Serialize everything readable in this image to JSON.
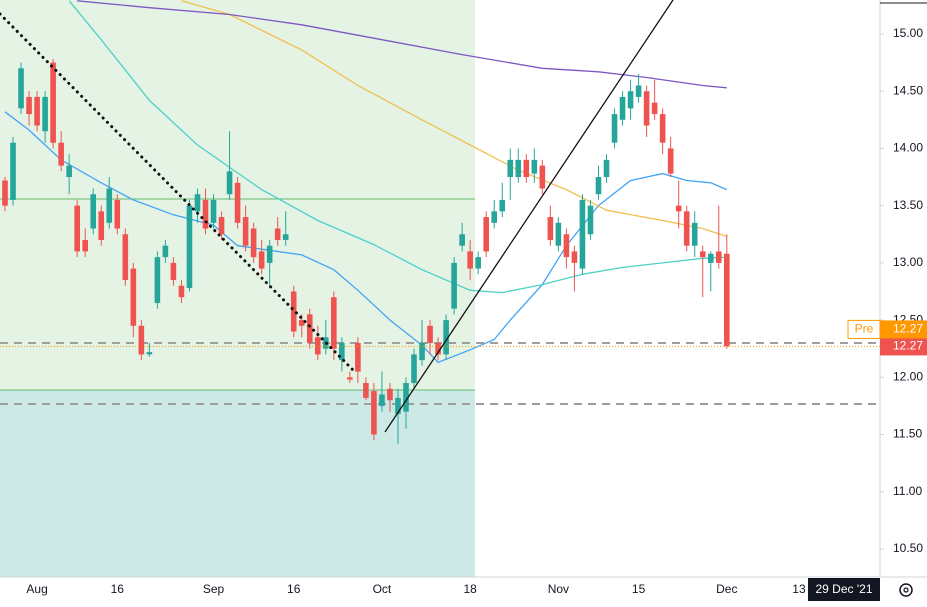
{
  "chart_data": {
    "type": "candlestick",
    "categories": [
      null,
      null,
      null,
      null,
      "Aug",
      null,
      null,
      null,
      null,
      null,
      null,
      null,
      null,
      null,
      "16",
      null,
      null,
      null,
      null,
      null,
      null,
      null,
      null,
      null,
      null,
      null,
      "Sep",
      null,
      null,
      null,
      null,
      null,
      null,
      null,
      null,
      null,
      "16",
      null,
      null,
      null,
      null,
      null,
      null,
      null,
      null,
      null,
      null,
      "Oct",
      null,
      null,
      null,
      null,
      null,
      null,
      null,
      null,
      null,
      null,
      "18",
      null,
      null,
      null,
      null,
      null,
      null,
      null,
      null,
      null,
      null,
      "Nov",
      null,
      null,
      null,
      null,
      null,
      null,
      null,
      null,
      null,
      "15",
      null,
      null,
      null,
      null,
      null,
      null,
      null,
      null,
      null,
      null,
      "Dec",
      null,
      null,
      null,
      null,
      null,
      null,
      null,
      null,
      "13"
    ],
    "open": [
      13.72,
      13.55,
      14.35,
      14.45,
      14.45,
      14.15,
      14.75,
      14.05,
      13.75,
      13.5,
      13.2,
      13.3,
      13.45,
      13.35,
      13.55,
      13.25,
      12.95,
      12.45,
      12.2,
      12.65,
      13.05,
      13.0,
      12.8,
      12.78,
      13.45,
      13.55,
      13.35,
      13.4,
      13.6,
      13.7,
      13.4,
      13.3,
      13.1,
      13.0,
      13.3,
      13.2,
      12.75,
      12.5,
      12.55,
      12.35,
      12.25,
      12.7,
      12.15,
      12.0,
      12.3,
      11.95,
      11.88,
      11.75,
      11.9,
      11.68,
      11.7,
      11.95,
      12.15,
      12.45,
      12.3,
      12.2,
      12.6,
      13.15,
      13.1,
      12.95,
      13.4,
      13.35,
      13.45,
      13.75,
      13.75,
      13.9,
      13.78,
      13.85,
      13.4,
      13.15,
      13.25,
      13.1,
      12.95,
      13.25,
      13.6,
      13.75,
      14.05,
      14.25,
      14.35,
      14.45,
      14.5,
      14.4,
      14.3,
      14.0,
      13.5,
      13.45,
      13.15,
      13.1,
      13.0,
      13.1,
      13.08,
      null,
      null,
      null,
      null,
      null,
      null,
      null,
      null,
      null
    ],
    "high": [
      13.75,
      14.1,
      14.75,
      14.5,
      14.5,
      14.5,
      14.78,
      14.15,
      13.95,
      13.55,
      13.3,
      13.65,
      13.5,
      13.75,
      13.6,
      13.3,
      13.0,
      12.5,
      12.3,
      13.1,
      13.2,
      13.05,
      12.85,
      13.55,
      13.65,
      13.65,
      13.6,
      13.45,
      14.15,
      13.75,
      13.5,
      13.35,
      13.2,
      13.2,
      13.4,
      13.45,
      12.8,
      12.55,
      12.6,
      12.45,
      12.5,
      12.75,
      12.35,
      12.05,
      12.35,
      12.0,
      11.95,
      12.05,
      11.95,
      11.9,
      12.0,
      12.25,
      12.5,
      12.5,
      12.35,
      12.55,
      13.05,
      13.35,
      13.2,
      13.1,
      13.45,
      13.55,
      13.7,
      14.0,
      14.0,
      13.95,
      14.0,
      13.9,
      13.5,
      13.4,
      13.3,
      13.15,
      13.6,
      13.55,
      13.85,
      13.95,
      14.35,
      14.5,
      14.6,
      14.65,
      14.55,
      14.6,
      14.35,
      14.1,
      13.72,
      13.5,
      13.45,
      13.15,
      13.1,
      13.5,
      13.25,
      null,
      null,
      null,
      null,
      null,
      null,
      null,
      null,
      null
    ],
    "low": [
      13.45,
      13.5,
      14.3,
      14.2,
      14.15,
      14.05,
      14.0,
      13.8,
      13.6,
      13.05,
      13.05,
      13.25,
      13.15,
      13.3,
      13.25,
      12.8,
      12.35,
      12.15,
      12.18,
      12.6,
      13.0,
      12.8,
      12.65,
      12.75,
      13.35,
      13.25,
      13.3,
      13.2,
      13.55,
      13.3,
      13.1,
      13.0,
      12.9,
      12.8,
      13.15,
      13.15,
      12.35,
      12.35,
      12.25,
      12.15,
      12.2,
      12.15,
      12.05,
      11.95,
      11.95,
      11.8,
      11.45,
      11.7,
      11.7,
      11.42,
      11.55,
      11.9,
      12.1,
      12.2,
      12.15,
      12.15,
      12.55,
      13.1,
      12.85,
      12.9,
      13.05,
      13.3,
      13.4,
      13.55,
      13.7,
      13.7,
      13.7,
      13.6,
      13.15,
      13.1,
      12.95,
      12.75,
      12.9,
      13.2,
      13.55,
      13.7,
      14.0,
      14.2,
      14.25,
      14.4,
      14.1,
      14.25,
      13.95,
      13.75,
      13.3,
      13.1,
      13.05,
      12.7,
      12.75,
      12.95,
      12.25,
      null,
      null,
      null,
      null,
      null,
      null,
      null,
      null,
      null
    ],
    "close": [
      13.5,
      14.05,
      14.7,
      14.3,
      14.2,
      14.45,
      14.05,
      13.85,
      13.85,
      13.1,
      13.1,
      13.6,
      13.2,
      13.65,
      13.3,
      12.85,
      12.45,
      12.2,
      12.22,
      13.05,
      13.15,
      12.85,
      12.7,
      13.5,
      13.6,
      13.3,
      13.55,
      13.25,
      13.8,
      13.35,
      13.15,
      13.05,
      12.95,
      13.15,
      13.2,
      13.25,
      12.4,
      12.45,
      12.3,
      12.2,
      12.35,
      12.25,
      12.3,
      11.98,
      12.05,
      11.82,
      11.5,
      11.85,
      11.8,
      11.82,
      11.95,
      12.2,
      12.3,
      12.3,
      12.2,
      12.5,
      13.0,
      13.25,
      12.95,
      13.05,
      13.1,
      13.45,
      13.55,
      13.9,
      13.9,
      13.75,
      13.9,
      13.65,
      13.2,
      13.35,
      13.05,
      13.0,
      13.55,
      13.5,
      13.75,
      13.9,
      14.3,
      14.45,
      14.5,
      14.55,
      14.2,
      14.3,
      14.05,
      13.78,
      13.45,
      13.15,
      13.35,
      13.05,
      13.08,
      13.0,
      12.27,
      null,
      null,
      null,
      null,
      null,
      null,
      null,
      null,
      null
    ],
    "up_color": "#26a69a",
    "down_color": "#ef5350",
    "moving_averages": [
      {
        "color": "#42a5f5",
        "x": [
          0,
          3,
          7,
          12,
          16,
          21,
          26,
          29,
          33,
          37,
          41,
          44,
          48,
          52,
          54,
          58,
          61,
          63,
          67,
          70,
          74,
          78,
          82,
          85,
          88,
          90
        ],
        "values": [
          14.32,
          14.16,
          13.9,
          13.7,
          13.55,
          13.42,
          13.33,
          13.15,
          13.11,
          13.07,
          12.94,
          12.76,
          12.5,
          12.28,
          12.13,
          12.24,
          12.33,
          12.5,
          12.81,
          13.15,
          13.5,
          13.72,
          13.78,
          13.72,
          13.7,
          13.64
        ]
      },
      {
        "color": "#4dd0c8",
        "x": [
          8,
          12,
          18,
          24,
          32,
          39,
          46,
          52,
          58,
          62,
          67,
          72,
          77,
          82,
          87,
          90
        ],
        "values": [
          15.29,
          14.95,
          14.42,
          14.03,
          13.64,
          13.37,
          13.16,
          12.94,
          12.76,
          12.74,
          12.81,
          12.9,
          12.96,
          13.0,
          13.04,
          13.05
        ]
      },
      {
        "color": "#f0c050",
        "x": [
          22,
          28,
          37,
          44,
          52,
          58,
          64,
          70,
          75,
          82,
          87,
          90
        ],
        "values": [
          15.29,
          15.17,
          14.86,
          14.55,
          14.25,
          14.03,
          13.81,
          13.64,
          13.46,
          13.37,
          13.3,
          13.23
        ]
      },
      {
        "color": "#7e57c2",
        "x": [
          9,
          18,
          28,
          37,
          47,
          57,
          67,
          74,
          80,
          87,
          90
        ],
        "values": [
          15.29,
          15.23,
          15.17,
          15.08,
          14.95,
          14.82,
          14.7,
          14.67,
          14.62,
          14.55,
          14.53
        ]
      }
    ],
    "ylim": [
      10.255,
      15.297
    ],
    "yticks": [
      {
        "value": 10.5,
        "label": "10.50"
      },
      {
        "value": 11,
        "label": "11.00"
      },
      {
        "value": 11.5,
        "label": "11.50"
      },
      {
        "value": 12,
        "label": "12.00"
      },
      {
        "value": 12.5,
        "label": "12.50"
      },
      {
        "value": 13,
        "label": "13.00"
      },
      {
        "value": 13.5,
        "label": "13.50"
      },
      {
        "value": 14,
        "label": "14.00"
      },
      {
        "value": 14.5,
        "label": "14.50"
      },
      {
        "value": 15,
        "label": "15.00"
      }
    ],
    "premarket": {
      "label": "Pre",
      "value": 12.27
    },
    "crosshair_date": "29 Dec '21"
  }
}
